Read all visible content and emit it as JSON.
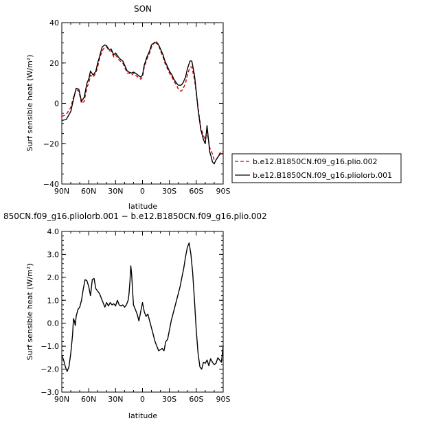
{
  "chart_data": [
    {
      "type": "line",
      "title": "SON",
      "xlabel": "latitude",
      "ylabel": "Surf sensible heat (W/m²)",
      "xlim": [
        90,
        -90
      ],
      "ylim": [
        -40,
        40
      ],
      "x_ticks": [
        "90N",
        "60N",
        "30N",
        "0",
        "30S",
        "60S",
        "90S"
      ],
      "y_ticks": [
        "40",
        "20",
        "0",
        "−20",
        "−40"
      ],
      "grid": false,
      "legend_position": "right",
      "series": [
        {
          "name": "b.e12.B1850CN.f09_g16.plio.002",
          "color": "#cc0000",
          "dash": "dashed",
          "x": [
            90,
            85,
            80,
            77,
            74,
            71,
            68,
            65,
            62,
            60,
            58,
            55,
            52,
            50,
            48,
            45,
            42,
            40,
            37,
            35,
            32,
            30,
            27,
            25,
            22,
            20,
            17,
            15,
            12,
            10,
            8,
            5,
            2,
            0,
            -2,
            -5,
            -8,
            -10,
            -13,
            -15,
            -18,
            -20,
            -23,
            -25,
            -28,
            -30,
            -33,
            -35,
            -38,
            -40,
            -43,
            -45,
            -48,
            -50,
            -53,
            -55,
            -58,
            -60,
            -62,
            -65,
            -68,
            -70,
            -72,
            -75,
            -77,
            -78,
            -80,
            -82,
            -85,
            -87,
            -90
          ],
          "y": [
            -6.5,
            -5.5,
            -2,
            3,
            7,
            6,
            0,
            1,
            8,
            10,
            14,
            13,
            15,
            18,
            22,
            26,
            28,
            28,
            26,
            26,
            23,
            24,
            22,
            21,
            20,
            18,
            15,
            15,
            14,
            15,
            14,
            13,
            12,
            13,
            18,
            22,
            25,
            28,
            30,
            31,
            29,
            26,
            23,
            20,
            17,
            15,
            13,
            11,
            9,
            7,
            6,
            7,
            10,
            14,
            18,
            18,
            12,
            5,
            -2,
            -12,
            -16,
            -18,
            -14,
            -22,
            -24,
            -25,
            -28,
            -28,
            -26,
            -24,
            -24
          ]
        },
        {
          "name": "b.e12.B1850CN.f09_g16.pliolorb.001",
          "color": "#000000",
          "dash": "solid",
          "x": [
            90,
            85,
            80,
            77,
            74,
            71,
            68,
            65,
            62,
            60,
            58,
            55,
            52,
            50,
            48,
            45,
            42,
            40,
            37,
            35,
            32,
            30,
            27,
            25,
            22,
            20,
            17,
            15,
            12,
            10,
            8,
            5,
            2,
            0,
            -2,
            -5,
            -8,
            -10,
            -13,
            -15,
            -18,
            -20,
            -23,
            -25,
            -28,
            -30,
            -33,
            -35,
            -38,
            -40,
            -43,
            -45,
            -48,
            -50,
            -53,
            -55,
            -58,
            -60,
            -62,
            -65,
            -68,
            -70,
            -72,
            -75,
            -77,
            -78,
            -80,
            -82,
            -85,
            -87,
            -90
          ],
          "y": [
            -8.5,
            -8,
            -4,
            2,
            7.5,
            7,
            1,
            3,
            10,
            12,
            16,
            14,
            16,
            20,
            23,
            28,
            29,
            28.5,
            26.5,
            27,
            24,
            25,
            23,
            22,
            21,
            19,
            16,
            15.5,
            15,
            15.5,
            15,
            14,
            13,
            14,
            19,
            23,
            26,
            29,
            30,
            30,
            29,
            27,
            24,
            21,
            18,
            16,
            14,
            12,
            10,
            9,
            9,
            10,
            13,
            17,
            21,
            21,
            14,
            6,
            -3,
            -13,
            -18,
            -20,
            -11,
            -24,
            -27,
            -29,
            -30,
            -28,
            -26,
            -25,
            -25
          ]
        }
      ]
    },
    {
      "type": "line",
      "title": "850CN.f09_g16.pliolorb.001 − b.e12.B1850CN.f09_g16.plio.002",
      "xlabel": "latitude",
      "ylabel": "Surf sensible heat (W/m²)",
      "xlim": [
        90,
        -90
      ],
      "ylim": [
        -3,
        4
      ],
      "x_ticks": [
        "90N",
        "60N",
        "30N",
        "0",
        "30S",
        "60S",
        "90S"
      ],
      "y_ticks": [
        "4.0",
        "3.0",
        "2.0",
        "1.0",
        "0.0",
        "−1.0",
        "−2.0",
        "−3.0"
      ],
      "grid": false,
      "series": [
        {
          "color": "#000000",
          "dash": "solid",
          "x": [
            90,
            88,
            86,
            84,
            82,
            80,
            78,
            77,
            76,
            75,
            74,
            72,
            70,
            68,
            66,
            64,
            62,
            60,
            58,
            56,
            54,
            52,
            50,
            48,
            46,
            44,
            42,
            40,
            38,
            36,
            34,
            32,
            30,
            28,
            26,
            24,
            22,
            20,
            18,
            16,
            15,
            14,
            13,
            12,
            11,
            10,
            8,
            6,
            4,
            2,
            0,
            -2,
            -4,
            -6,
            -8,
            -10,
            -12,
            -14,
            -16,
            -18,
            -20,
            -22,
            -24,
            -26,
            -28,
            -30,
            -32,
            -34,
            -36,
            -38,
            -40,
            -42,
            -44,
            -46,
            -48,
            -50,
            -52,
            -54,
            -56,
            -58,
            -60,
            -62,
            -64,
            -66,
            -68,
            -70,
            -72,
            -74,
            -76,
            -78,
            -80,
            -82,
            -84,
            -86,
            -88,
            -90
          ],
          "y": [
            -1.4,
            -1.6,
            -1.9,
            -2.1,
            -1.9,
            -1.3,
            -0.5,
            0.2,
            0.1,
            -0.1,
            0.3,
            0.6,
            0.7,
            1.0,
            1.5,
            1.9,
            1.85,
            1.6,
            1.2,
            1.9,
            1.95,
            1.5,
            1.4,
            1.3,
            1.1,
            0.9,
            0.7,
            0.9,
            0.75,
            0.9,
            0.8,
            0.85,
            0.75,
            1.0,
            0.8,
            0.75,
            0.8,
            0.7,
            0.8,
            1.0,
            1.3,
            1.8,
            2.5,
            2.1,
            1.4,
            0.8,
            0.6,
            0.4,
            0.1,
            0.5,
            0.9,
            0.5,
            0.3,
            0.4,
            0.1,
            -0.2,
            -0.5,
            -0.8,
            -1.0,
            -1.2,
            -1.15,
            -1.1,
            -1.2,
            -0.8,
            -0.7,
            -0.3,
            0.1,
            0.4,
            0.7,
            1.0,
            1.3,
            1.6,
            2.0,
            2.4,
            2.9,
            3.3,
            3.5,
            3.0,
            2.2,
            1.0,
            -0.3,
            -1.3,
            -1.9,
            -2.0,
            -1.7,
            -1.75,
            -1.6,
            -1.85,
            -1.55,
            -1.7,
            -1.8,
            -1.75,
            -1.5,
            -1.6,
            -1.7,
            -1.0
          ]
        }
      ]
    }
  ]
}
